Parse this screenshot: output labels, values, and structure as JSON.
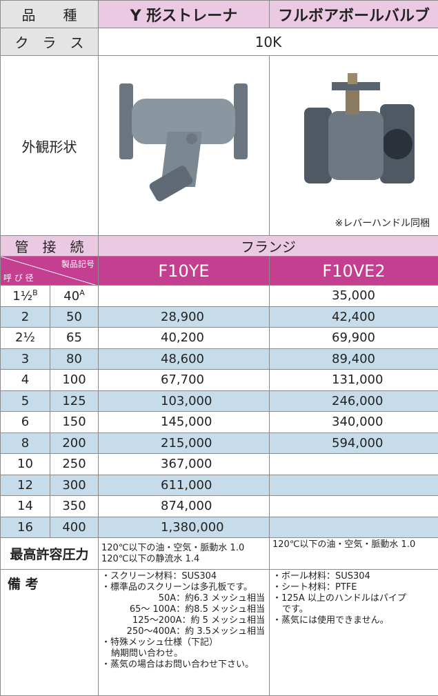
{
  "header": {
    "label": "品　　種",
    "y_strainer": "Y 形ストレーナ",
    "ball_valve": "フルボアボールバルブ"
  },
  "class_row": {
    "label": "ク　ラ　ス",
    "value": "10K"
  },
  "appearance": {
    "label": "外観形状",
    "ball_valve_note": "※レバーハンドル同梱"
  },
  "connection": {
    "label": "管　接　続",
    "value": "フランジ"
  },
  "model_header": {
    "diagonal_top": "製品記号",
    "diagonal_bottom": "呼 び 径",
    "y_strainer": "F10YE",
    "ball_valve": "F10VE2"
  },
  "table": {
    "rows": [
      {
        "b": "1½",
        "b_unit": "B",
        "a": "40",
        "a_unit": "A",
        "y_strainer": null,
        "ball_valve": "35,000"
      },
      {
        "b": "2",
        "a": "50",
        "y_strainer": "28,900",
        "ball_valve": "42,400"
      },
      {
        "b": "2½",
        "a": "65",
        "y_strainer": "40,200",
        "ball_valve": "69,900"
      },
      {
        "b": "3",
        "a": "80",
        "y_strainer": "48,600",
        "ball_valve": "89,400"
      },
      {
        "b": "4",
        "a": "100",
        "y_strainer": "67,700",
        "ball_valve": "131,000"
      },
      {
        "b": "5",
        "a": "125",
        "y_strainer": "103,000",
        "ball_valve": "246,000"
      },
      {
        "b": "6",
        "a": "150",
        "y_strainer": "145,000",
        "ball_valve": "340,000"
      },
      {
        "b": "8",
        "a": "200",
        "y_strainer": "215,000",
        "ball_valve": "594,000"
      },
      {
        "b": "10",
        "a": "250",
        "y_strainer": "367,000",
        "ball_valve": null
      },
      {
        "b": "12",
        "a": "300",
        "y_strainer": "611,000",
        "ball_valve": null
      },
      {
        "b": "14",
        "a": "350",
        "y_strainer": "874,000",
        "ball_valve": null
      },
      {
        "b": "16",
        "a": "400",
        "y_strainer": "1,380,000",
        "ball_valve": null
      }
    ]
  },
  "pressure": {
    "label": "最高許容圧力",
    "y_strainer": [
      "120℃以下の油・空気・脈動水 1.0",
      "120℃以下の静流水 1.4"
    ],
    "ball_valve": [
      "120℃以下の油・空気・脈動水 1.0"
    ]
  },
  "remarks": {
    "label": "備 考",
    "y_strainer": [
      "・スクリーン材料：SUS304",
      "・標準品のスクリーンは多孔板です。",
      "50A：約6.3 メッシュ相当",
      "65～ 100A：約8.5 メッシュ相当",
      "125～200A：約 5 メッシュ相当",
      "250～400A：約 3.5メッシュ相当",
      "・特殊メッシュ仕様（下記）",
      "納期問い合わせ。",
      "・蒸気の場合はお問い合わせ下さい。"
    ],
    "ball_valve": [
      "・ボール材料：SUS304",
      "・シート材料：PTFE",
      "・125A 以上のハンドルはパイプ",
      "です。",
      "・蒸気には使用できません。"
    ]
  }
}
